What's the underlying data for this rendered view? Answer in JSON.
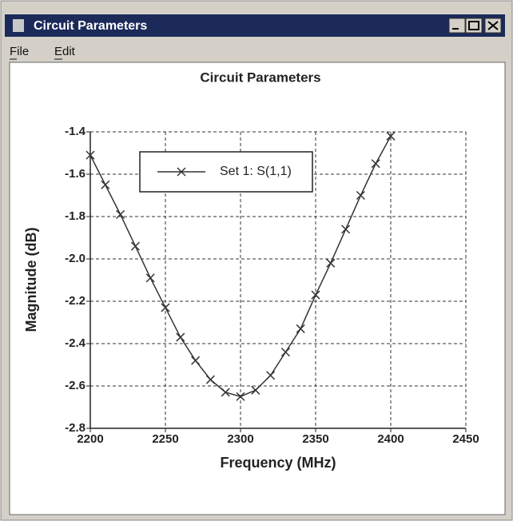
{
  "window": {
    "title": "Circuit Parameters",
    "menu": [
      "File",
      "Edit"
    ]
  },
  "chart_data": {
    "type": "line",
    "title": "Circuit Parameters",
    "x_label": "Frequency (MHz)",
    "y_label": "Magnitude (dB)",
    "x": [
      2200,
      2210,
      2220,
      2230,
      2240,
      2250,
      2260,
      2270,
      2280,
      2290,
      2300,
      2310,
      2320,
      2330,
      2340,
      2350,
      2360,
      2370,
      2380,
      2390,
      2400
    ],
    "series": [
      {
        "name": "Set 1: S(1,1)",
        "color": "#333333",
        "marker": "x",
        "values": [
          -1.51,
          -1.65,
          -1.79,
          -1.94,
          -2.09,
          -2.23,
          -2.37,
          -2.48,
          -2.57,
          -2.63,
          -2.65,
          -2.62,
          -2.55,
          -2.44,
          -2.33,
          -2.17,
          -2.02,
          -1.86,
          -1.7,
          -1.55,
          -1.42
        ]
      }
    ],
    "xlim": [
      2200,
      2450
    ],
    "xticks": [
      2200,
      2250,
      2300,
      2350,
      2400,
      2450
    ],
    "ylim": [
      -2.8,
      -1.4
    ],
    "yticks": [
      -1.4,
      -1.6,
      -1.8,
      {
        "value": -2,
        "label": "-2.0"
      },
      -2.2,
      -2.4,
      -2.6,
      -2.8
    ],
    "grid": true,
    "legend": "upper left"
  }
}
